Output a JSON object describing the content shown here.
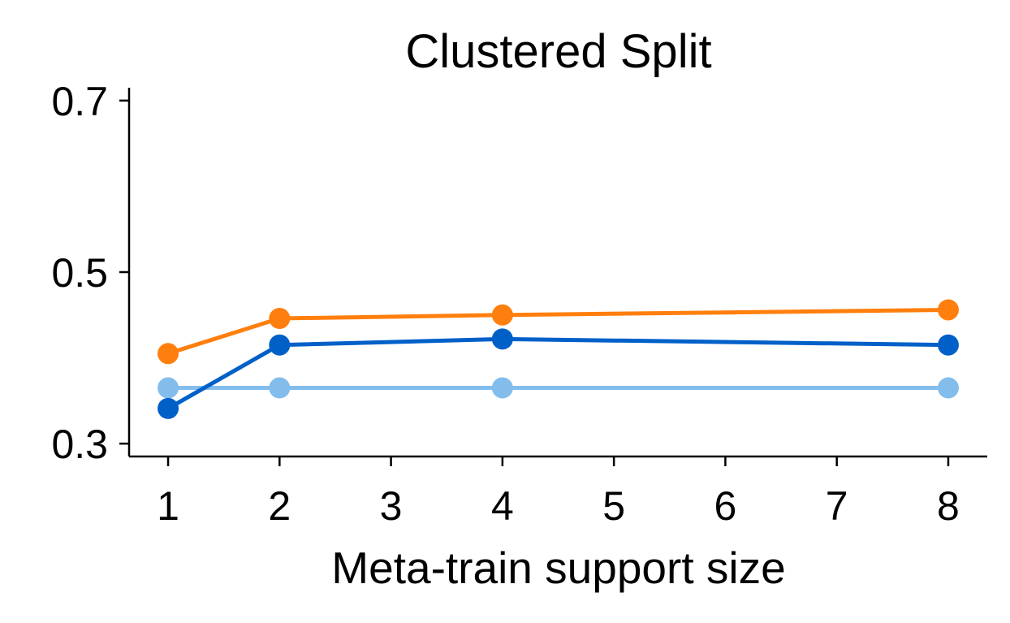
{
  "chart_data": {
    "type": "line",
    "title": "Clustered Split",
    "xlabel": "Meta-train support size",
    "ylabel": "",
    "xlim": [
      0.65,
      8.35
    ],
    "ylim": [
      0.285,
      0.715
    ],
    "xticks": [
      1,
      2,
      3,
      4,
      5,
      6,
      7,
      8
    ],
    "yticks": [
      0.3,
      0.5,
      0.7
    ],
    "ytick_labels": [
      "0.3",
      "0.5",
      "0.7"
    ],
    "grid": false,
    "legend": "none",
    "series": [
      {
        "color": "#ff7f0e",
        "marker": "circle",
        "x": [
          1,
          2,
          4,
          8
        ],
        "y": [
          0.405,
          0.446,
          0.45,
          0.456
        ]
      },
      {
        "color": "#0060c8",
        "marker": "circle",
        "x": [
          1,
          2,
          4,
          8
        ],
        "y": [
          0.341,
          0.415,
          0.422,
          0.415
        ]
      },
      {
        "color": "#82bdec",
        "marker": "circle",
        "x": [
          1,
          2,
          4,
          8
        ],
        "y": [
          0.365,
          0.365,
          0.365,
          0.365
        ]
      }
    ]
  }
}
